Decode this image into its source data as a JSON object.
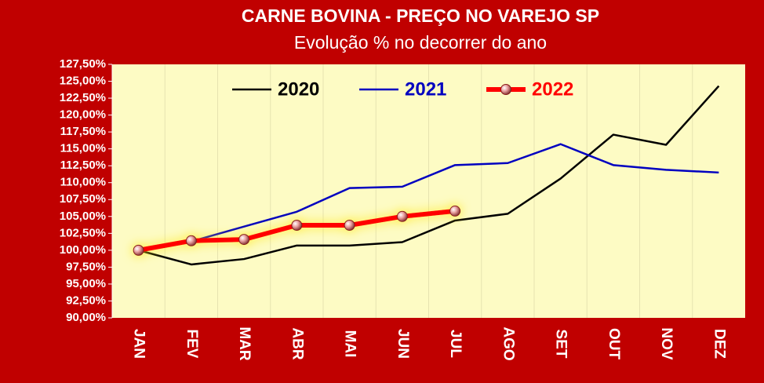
{
  "chart_data": {
    "type": "line",
    "title": "CARNE BOVINA - PREÇO NO VAREJO SP",
    "subtitle": "Evolução % no decorrer do ano",
    "categories": [
      "JAN",
      "FEV",
      "MAR",
      "ABR",
      "MAI",
      "JUN",
      "JUL",
      "AGO",
      "SET",
      "OUT",
      "NOV",
      "DEZ"
    ],
    "series": [
      {
        "name": "2020",
        "color": "#000000",
        "values": [
          100,
          97.9,
          98.7,
          100.7,
          100.7,
          101.2,
          104.4,
          105.4,
          110.6,
          117.1,
          115.6,
          124.3
        ]
      },
      {
        "name": "2021",
        "color": "#0000c0",
        "values": [
          100,
          101.3,
          103.5,
          105.7,
          109.2,
          109.4,
          112.6,
          112.9,
          115.7,
          112.6,
          111.9,
          111.5
        ]
      },
      {
        "name": "2022",
        "color": "#ff0000",
        "values": [
          100,
          101.4,
          101.6,
          103.7,
          103.7,
          105.0,
          105.8,
          null,
          null,
          null,
          null,
          null
        ]
      }
    ],
    "ylim": [
      90,
      127.5
    ],
    "yticks": [
      {
        "value": 90,
        "label": "90,00%"
      },
      {
        "value": 92.5,
        "label": "92,50%"
      },
      {
        "value": 95,
        "label": "95,00%"
      },
      {
        "value": 97.5,
        "label": "97,50%"
      },
      {
        "value": 100,
        "label": "100,00%"
      },
      {
        "value": 102.5,
        "label": "102,50%"
      },
      {
        "value": 105,
        "label": "105,00%"
      },
      {
        "value": 107.5,
        "label": "107,50%"
      },
      {
        "value": 110,
        "label": "110,00%"
      },
      {
        "value": 112.5,
        "label": "112,50%"
      },
      {
        "value": 115,
        "label": "115,00%"
      },
      {
        "value": 117.5,
        "label": "117,50%"
      },
      {
        "value": 120,
        "label": "120,00%"
      },
      {
        "value": 122.5,
        "label": "122,50%"
      },
      {
        "value": 125,
        "label": "125,00%"
      },
      {
        "value": 127.5,
        "label": "127,50%"
      }
    ],
    "legend": "top"
  }
}
